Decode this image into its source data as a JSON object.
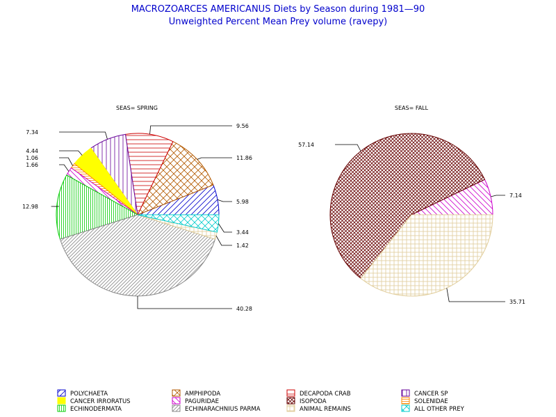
{
  "chart_data": {
    "type": "pie",
    "title": "MACROZOARCES AMERICANUS Diets by Season during 1981—90",
    "subtitle": "Unweighted Percent Mean Prey volume (ravepy)",
    "categories": [
      {
        "name": "POLYCHAETA",
        "color": "#0000cc",
        "pattern": "diag-up"
      },
      {
        "name": "AMPHIPODA",
        "color": "#b35900",
        "pattern": "cross-diag"
      },
      {
        "name": "DECAPODA CRAB",
        "color": "#cc0000",
        "pattern": "horiz"
      },
      {
        "name": "CANCER SP",
        "color": "#660099",
        "pattern": "vert"
      },
      {
        "name": "CANCER IRRORATUS",
        "color": "#ffff00",
        "pattern": "solid"
      },
      {
        "name": "PAGURIDAE",
        "color": "#cc00cc",
        "pattern": "diag-down"
      },
      {
        "name": "ISOPODA",
        "color": "#660000",
        "pattern": "cross-diag-dense"
      },
      {
        "name": "SOLENIDAE",
        "color": "#ff8800",
        "pattern": "horiz-dense"
      },
      {
        "name": "ECHINODERMATA",
        "color": "#00cc00",
        "pattern": "vert-dense"
      },
      {
        "name": "ECHINARACHNIUS PARMA",
        "color": "#888888",
        "pattern": "diag-up-dense"
      },
      {
        "name": "ANIMAL REMAINS",
        "color": "#e0cc99",
        "pattern": "grid"
      },
      {
        "name": "ALL OTHER PREY",
        "color": "#00cccc",
        "pattern": "cross-diag"
      }
    ],
    "pies": [
      {
        "panel_label": "SEAS= SPRING",
        "slices": [
          {
            "category": "POLYCHAETA",
            "value": 5.98
          },
          {
            "category": "AMPHIPODA",
            "value": 11.86
          },
          {
            "category": "DECAPODA CRAB",
            "value": 9.56
          },
          {
            "category": "CANCER SP",
            "value": 7.34
          },
          {
            "category": "CANCER IRRORATUS",
            "value": 4.44
          },
          {
            "category": "SOLENIDAE",
            "value": 1.06
          },
          {
            "category": "PAGURIDAE",
            "value": 1.66
          },
          {
            "category": "ECHINODERMATA",
            "value": 12.98
          },
          {
            "category": "ECHINARACHNIUS PARMA",
            "value": 40.28
          },
          {
            "category": "ANIMAL REMAINS",
            "value": 1.42
          },
          {
            "category": "ALL OTHER PREY",
            "value": 3.44
          }
        ],
        "labels": [
          "5.98",
          "11.86",
          "9.56",
          "7.34",
          "4.44",
          "1.06",
          "1.66",
          "12.98",
          "40.28",
          "1.42",
          "3.44"
        ]
      },
      {
        "panel_label": "SEAS= FALL",
        "slices": [
          {
            "category": "PAGURIDAE",
            "value": 7.14
          },
          {
            "category": "ISOPODA",
            "value": 57.14
          },
          {
            "category": "ANIMAL REMAINS",
            "value": 35.71
          }
        ],
        "labels": [
          "7.14",
          "57.14",
          "35.71"
        ]
      }
    ],
    "legend_placement": "bottom"
  }
}
